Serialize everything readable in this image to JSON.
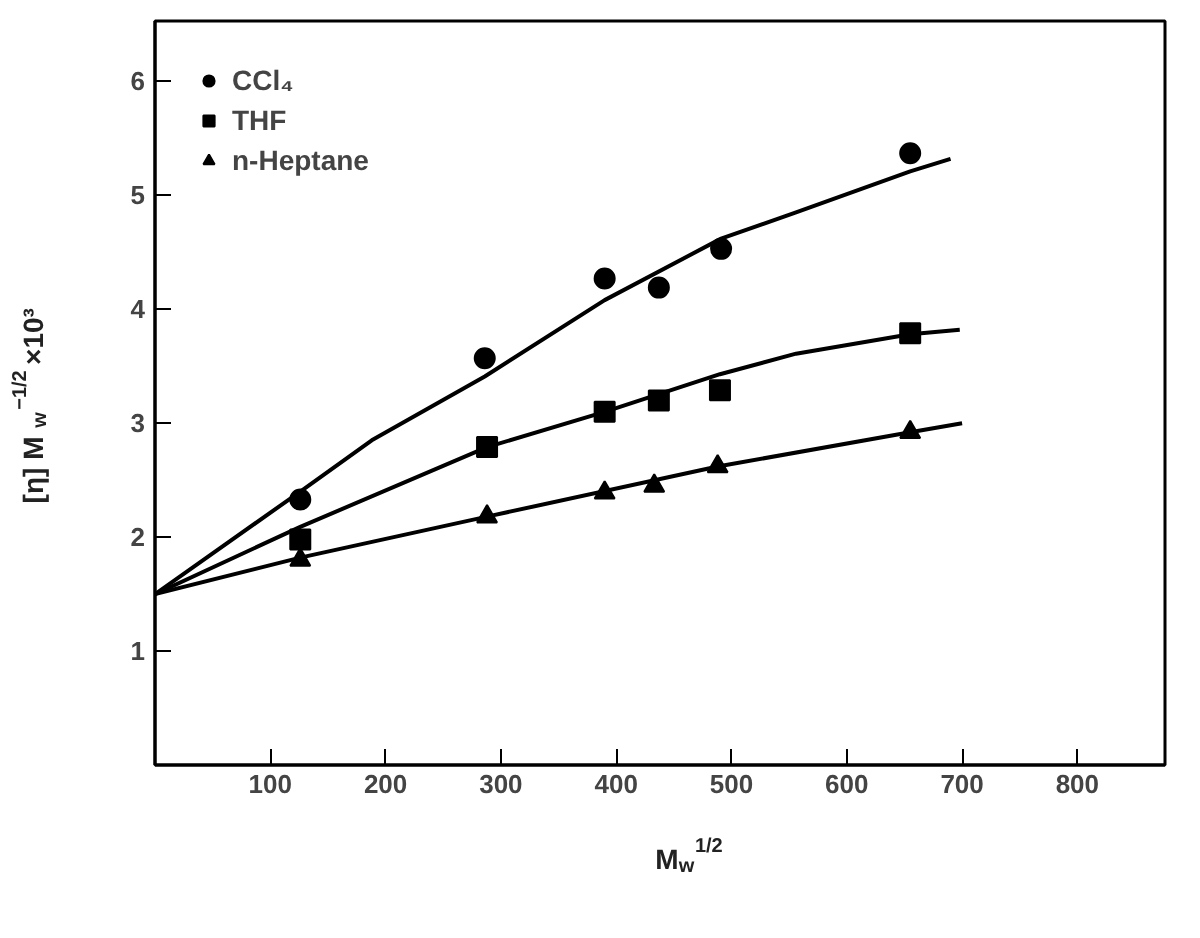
{
  "chart_data": {
    "type": "scatter",
    "xlabel": "M$_{w}$$^{1/2}$",
    "ylabel": "[η] M$_{w}$$^{−1/2}$ ×10³",
    "xlim": [
      0,
      876
    ],
    "ylim": [
      0,
      6.53
    ],
    "xticks": [
      100,
      200,
      300,
      400,
      500,
      600,
      700,
      800
    ],
    "yticks": [
      1,
      2,
      3,
      4,
      5,
      6
    ],
    "grid": false,
    "legend": "top left",
    "series": [
      {
        "name": "CCl₄",
        "marker": "circle",
        "color": "#000000",
        "x": [
          126,
          286,
          390,
          437,
          491,
          655
        ],
        "values": [
          2.33,
          3.57,
          4.27,
          4.19,
          4.53,
          5.37
        ]
      },
      {
        "name": "THF",
        "marker": "square",
        "color": "#000000",
        "x": [
          126,
          288,
          390,
          437,
          490,
          655
        ],
        "values": [
          1.98,
          2.79,
          3.1,
          3.2,
          3.29,
          3.79
        ]
      },
      {
        "name": "n-Heptane",
        "marker": "triangle",
        "color": "#000000",
        "x": [
          126,
          288,
          390,
          433,
          488,
          655
        ],
        "values": [
          1.8,
          2.18,
          2.39,
          2.45,
          2.62,
          2.92
        ]
      },
      {
        "type": "line",
        "line_style": "solid",
        "color": "#000000",
        "x": [
          0,
          126,
          188,
          286,
          390,
          491,
          556,
          655,
          690
        ],
        "values": [
          1.5,
          2.4,
          2.85,
          3.41,
          4.08,
          4.62,
          4.85,
          5.21,
          5.32
        ]
      },
      {
        "type": "line",
        "line_style": "solid",
        "color": "#000000",
        "x": [
          0,
          126,
          288,
          390,
          490,
          556,
          655,
          698
        ],
        "values": [
          1.5,
          2.09,
          2.79,
          3.1,
          3.43,
          3.61,
          3.78,
          3.82
        ]
      },
      {
        "type": "line",
        "line_style": "solid",
        "color": "#000000",
        "x": [
          0,
          126,
          288,
          488,
          655,
          700
        ],
        "values": [
          1.5,
          1.82,
          2.18,
          2.62,
          2.92,
          3.0
        ]
      }
    ]
  }
}
